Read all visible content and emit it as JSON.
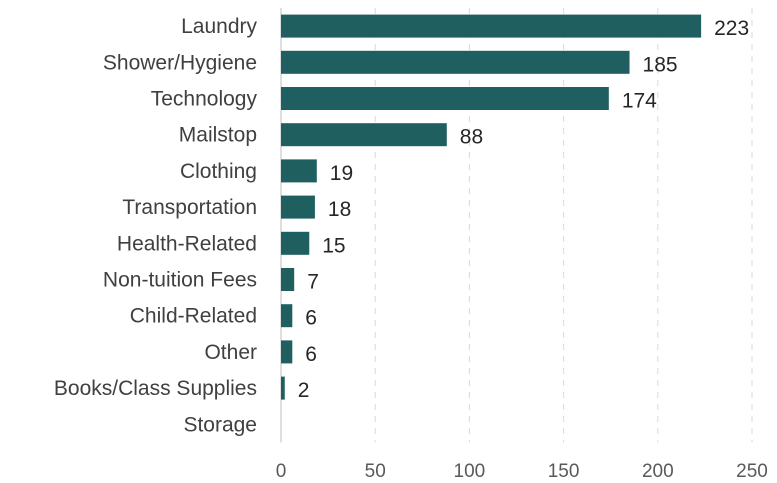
{
  "chart_data": {
    "type": "bar",
    "orientation": "horizontal",
    "title": "",
    "xlabel": "",
    "ylabel": "",
    "categories": [
      "Laundry",
      "Shower/Hygiene",
      "Technology",
      "Mailstop",
      "Clothing",
      "Transportation",
      "Health-Related",
      "Non-tuition Fees",
      "Child-Related",
      "Other",
      "Books/Class Supplies",
      "Storage"
    ],
    "values": [
      223,
      185,
      174,
      88,
      19,
      18,
      15,
      7,
      6,
      6,
      2,
      null
    ],
    "value_labels": [
      "223",
      "185",
      "174",
      "88",
      "19",
      "18",
      "15",
      "7",
      "6",
      "6",
      "2",
      ""
    ],
    "xlim": [
      0,
      250
    ],
    "xticks": [
      0,
      50,
      100,
      150,
      200,
      250
    ],
    "grid": true,
    "legend": "none",
    "bar_color": "#1f5f5f"
  }
}
